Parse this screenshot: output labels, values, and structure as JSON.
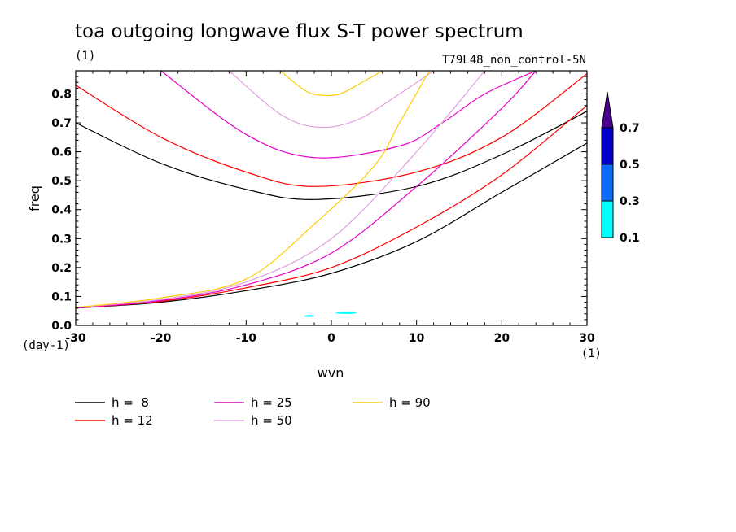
{
  "chart_data": {
    "type": "line",
    "title": "toa outgoing longwave flux S-T power spectrum",
    "subtitle_left": "(1)",
    "subtitle_right": "T79L48_non_control-5N",
    "xlabel": "wvn",
    "ylabel": "freq",
    "x_unit": "(1)",
    "y_unit": "(day-1)",
    "xlim": [
      -30,
      30
    ],
    "ylim": [
      0,
      0.88
    ],
    "xticks": [
      -30,
      -20,
      -10,
      0,
      10,
      20,
      30
    ],
    "xtick_labels": [
      "-30",
      "-20",
      "-10",
      "0",
      "10",
      "20",
      "30"
    ],
    "yticks": [
      0,
      0.1,
      0.2,
      0.3,
      0.4,
      0.5,
      0.6,
      0.7,
      0.8
    ],
    "ytick_labels": [
      "0.0",
      "0.1",
      "0.2",
      "0.3",
      "0.4",
      "0.5",
      "0.6",
      "0.7",
      "0.8"
    ],
    "colorbar": {
      "levels": [
        "0.1",
        "0.3",
        "0.5",
        "0.7"
      ],
      "colors": [
        "#00ffff",
        "#0a6cff",
        "#0000c8",
        "#4b0090"
      ]
    },
    "contour_patches": [
      {
        "x": [
          -3.2,
          -2.0
        ],
        "y": [
          0.031,
          0.034
        ],
        "color": "#00ffff"
      },
      {
        "x": [
          0.5,
          3.0
        ],
        "y": [
          0.04,
          0.046
        ],
        "color": "#00ffff"
      }
    ],
    "series": [
      {
        "name": "h =  8",
        "color": "#000000",
        "branch_upper": {
          "x": [
            -30,
            -20,
            -10,
            -2,
            10,
            20,
            30
          ],
          "y": [
            0.7,
            0.56,
            0.47,
            0.435,
            0.48,
            0.59,
            0.74
          ]
        },
        "branch_lower": {
          "x": [
            -30,
            -20,
            -10,
            0,
            10,
            20,
            30
          ],
          "y": [
            0.06,
            0.08,
            0.12,
            0.18,
            0.29,
            0.46,
            0.63
          ]
        }
      },
      {
        "name": "h = 12",
        "color": "#ff0000",
        "branch_upper": {
          "x": [
            -30,
            -20,
            -10,
            -2,
            10,
            20,
            30
          ],
          "y": [
            0.83,
            0.65,
            0.53,
            0.48,
            0.53,
            0.65,
            0.87
          ]
        },
        "branch_lower": {
          "x": [
            -30,
            -20,
            -10,
            0,
            10,
            20,
            30
          ],
          "y": [
            0.06,
            0.083,
            0.13,
            0.2,
            0.34,
            0.52,
            0.76
          ]
        }
      },
      {
        "name": "h = 25",
        "color": "#e800c8",
        "branch_upper": {
          "x": [
            -20,
            -10,
            -2,
            8,
            13,
            18,
            24
          ],
          "y": [
            0.88,
            0.66,
            0.58,
            0.62,
            0.7,
            0.8,
            0.88
          ]
        },
        "branch_lower": {
          "x": [
            -30,
            -20,
            -10,
            0,
            10,
            20,
            24
          ],
          "y": [
            0.06,
            0.086,
            0.14,
            0.25,
            0.48,
            0.75,
            0.88
          ]
        }
      },
      {
        "name": "h = 50",
        "color": "#e0a0e0",
        "branch_upper": {
          "x": [
            -12,
            -6,
            -1.5,
            3,
            8,
            12
          ],
          "y": [
            0.88,
            0.73,
            0.685,
            0.71,
            0.8,
            0.88
          ]
        },
        "branch_lower": {
          "x": [
            -30,
            -20,
            -10,
            0,
            10,
            18
          ],
          "y": [
            0.062,
            0.09,
            0.15,
            0.3,
            0.6,
            0.88
          ]
        }
      },
      {
        "name": "h = 90",
        "color": "#ffcc00",
        "branch_upper": {
          "x": [
            -6,
            -3,
            -1,
            1,
            3,
            6
          ],
          "y": [
            0.88,
            0.81,
            0.795,
            0.8,
            0.83,
            0.88
          ]
        },
        "branch_lower": {
          "x": [
            -30,
            -20,
            -10,
            -2,
            5,
            8,
            11.5
          ],
          "y": [
            0.062,
            0.095,
            0.16,
            0.35,
            0.55,
            0.7,
            0.88
          ]
        }
      }
    ]
  }
}
